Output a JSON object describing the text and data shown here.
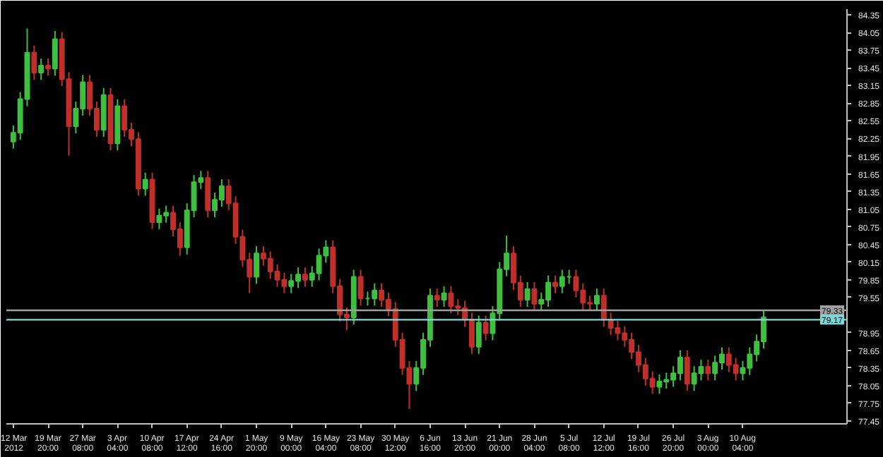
{
  "chart_data": {
    "type": "candlestick",
    "categories": [
      "12 Mar 2012",
      null,
      null,
      null,
      null,
      "19 Mar 20:00",
      null,
      null,
      null,
      null,
      "27 Mar 08:00",
      null,
      null,
      null,
      null,
      "3 Apr 04:00",
      null,
      null,
      null,
      null,
      "10 Apr 08:00",
      null,
      null,
      null,
      null,
      "17 Apr 12:00",
      null,
      null,
      null,
      null,
      "24 Apr 16:00",
      null,
      null,
      null,
      null,
      "1 May 20:00",
      null,
      null,
      null,
      null,
      "9 May 00:00",
      null,
      null,
      null,
      null,
      "16 May 04:00",
      null,
      null,
      null,
      null,
      "23 May 08:00",
      null,
      null,
      null,
      null,
      "30 May 12:00",
      null,
      null,
      null,
      null,
      "6 Jun 16:00",
      null,
      null,
      null,
      null,
      "13 Jun 20:00",
      null,
      null,
      null,
      null,
      "21 Jun 00:00",
      null,
      null,
      null,
      null,
      "28 Jun 04:00",
      null,
      null,
      null,
      null,
      "5 Jul 08:00",
      null,
      null,
      null,
      null,
      "12 Jul 12:00",
      null,
      null,
      null,
      null,
      "19 Jul 16:00",
      null,
      null,
      null,
      null,
      "26 Jul 20:00",
      null,
      null,
      null,
      null,
      "3 Aug 00:00",
      null,
      null,
      null,
      null,
      "10 Aug 04:00",
      null,
      null,
      null,
      null,
      null,
      null,
      null,
      null,
      null,
      null,
      null,
      null,
      null,
      null
    ],
    "ohlc": [
      [
        82.2,
        82.47,
        82.08,
        82.35
      ],
      [
        82.35,
        83.04,
        82.23,
        82.92
      ],
      [
        82.92,
        84.12,
        82.8,
        83.71
      ],
      [
        83.71,
        83.83,
        83.25,
        83.37
      ],
      [
        83.37,
        83.61,
        83.25,
        83.49
      ],
      [
        83.49,
        83.61,
        83.32,
        83.44
      ],
      [
        83.44,
        84.08,
        83.32,
        83.94
      ],
      [
        83.94,
        84.06,
        83.14,
        83.26
      ],
      [
        83.26,
        83.38,
        81.96,
        82.46
      ],
      [
        82.46,
        82.88,
        82.34,
        82.76
      ],
      [
        82.76,
        83.33,
        82.64,
        83.21
      ],
      [
        83.21,
        83.33,
        82.64,
        82.76
      ],
      [
        82.76,
        82.88,
        82.28,
        82.4
      ],
      [
        82.4,
        83.11,
        82.28,
        82.99
      ],
      [
        82.99,
        83.11,
        82.05,
        82.17
      ],
      [
        82.17,
        82.92,
        82.05,
        82.8
      ],
      [
        82.8,
        82.92,
        82.28,
        82.4
      ],
      [
        82.4,
        82.52,
        82.12,
        82.24
      ],
      [
        82.24,
        82.36,
        81.28,
        81.4
      ],
      [
        81.4,
        81.67,
        81.28,
        81.55
      ],
      [
        81.55,
        81.67,
        80.71,
        80.83
      ],
      [
        80.83,
        81.06,
        80.71,
        80.94
      ],
      [
        80.94,
        81.11,
        80.82,
        80.99
      ],
      [
        80.99,
        81.11,
        80.59,
        80.71
      ],
      [
        80.71,
        80.83,
        80.26,
        80.4
      ],
      [
        80.4,
        81.15,
        80.28,
        81.03
      ],
      [
        81.03,
        81.63,
        80.91,
        81.51
      ],
      [
        81.51,
        81.7,
        81.39,
        81.58
      ],
      [
        81.58,
        81.7,
        80.91,
        81.03
      ],
      [
        81.03,
        81.33,
        80.91,
        81.21
      ],
      [
        81.21,
        81.56,
        81.09,
        81.44
      ],
      [
        81.44,
        81.56,
        81.03,
        81.15
      ],
      [
        81.15,
        81.27,
        80.46,
        80.58
      ],
      [
        80.58,
        80.7,
        80.07,
        80.19
      ],
      [
        80.19,
        80.31,
        79.62,
        79.9
      ],
      [
        79.9,
        80.42,
        79.78,
        80.3
      ],
      [
        80.3,
        80.42,
        80.09,
        80.21
      ],
      [
        80.21,
        80.33,
        79.87,
        79.99
      ],
      [
        79.99,
        80.11,
        79.73,
        79.85
      ],
      [
        79.85,
        79.97,
        79.62,
        79.74
      ],
      [
        79.74,
        79.95,
        79.62,
        79.83
      ],
      [
        79.83,
        80.06,
        79.71,
        79.94
      ],
      [
        79.94,
        80.06,
        79.73,
        79.85
      ],
      [
        79.85,
        80.08,
        79.73,
        79.96
      ],
      [
        79.96,
        80.38,
        79.84,
        80.26
      ],
      [
        80.26,
        80.52,
        80.14,
        80.4
      ],
      [
        80.4,
        80.52,
        79.62,
        79.74
      ],
      [
        79.74,
        79.86,
        79.14,
        79.26
      ],
      [
        79.26,
        79.38,
        78.99,
        79.21
      ],
      [
        79.21,
        80.02,
        79.09,
        79.9
      ],
      [
        79.9,
        80.02,
        79.41,
        79.53
      ],
      [
        79.53,
        79.65,
        79.41,
        79.53
      ],
      [
        79.53,
        79.79,
        79.41,
        79.67
      ],
      [
        79.67,
        79.79,
        79.39,
        79.51
      ],
      [
        79.51,
        79.63,
        79.23,
        79.35
      ],
      [
        79.35,
        79.47,
        78.71,
        78.83
      ],
      [
        78.83,
        78.95,
        78.23,
        78.35
      ],
      [
        78.35,
        78.47,
        77.65,
        78.08
      ],
      [
        78.08,
        78.47,
        77.96,
        78.35
      ],
      [
        78.35,
        78.95,
        78.23,
        78.83
      ],
      [
        78.83,
        79.7,
        78.71,
        79.58
      ],
      [
        79.58,
        79.7,
        79.39,
        79.51
      ],
      [
        79.51,
        79.74,
        79.39,
        79.62
      ],
      [
        79.62,
        79.74,
        79.28,
        79.4
      ],
      [
        79.4,
        79.52,
        79.25,
        79.37
      ],
      [
        79.37,
        79.49,
        79.05,
        79.17
      ],
      [
        79.17,
        79.29,
        78.59,
        78.71
      ],
      [
        78.71,
        79.24,
        78.59,
        79.12
      ],
      [
        79.12,
        79.24,
        78.82,
        78.94
      ],
      [
        78.94,
        79.4,
        78.82,
        79.28
      ],
      [
        79.28,
        80.15,
        79.16,
        80.03
      ],
      [
        80.03,
        80.6,
        79.91,
        80.3
      ],
      [
        80.3,
        80.42,
        79.68,
        79.8
      ],
      [
        79.8,
        79.92,
        79.39,
        79.51
      ],
      [
        79.51,
        79.81,
        79.39,
        79.69
      ],
      [
        79.69,
        79.81,
        79.32,
        79.44
      ],
      [
        79.44,
        79.63,
        79.32,
        79.51
      ],
      [
        79.51,
        79.92,
        79.39,
        79.8
      ],
      [
        79.8,
        79.92,
        79.62,
        79.74
      ],
      [
        79.74,
        80.02,
        79.62,
        79.9
      ],
      [
        79.9,
        80.02,
        79.78,
        79.9
      ],
      [
        79.9,
        80.02,
        79.55,
        79.67
      ],
      [
        79.67,
        79.79,
        79.34,
        79.46
      ],
      [
        79.46,
        79.58,
        79.32,
        79.44
      ],
      [
        79.44,
        79.7,
        79.32,
        79.58
      ],
      [
        79.58,
        79.7,
        79.05,
        79.17
      ],
      [
        79.17,
        79.29,
        78.91,
        79.03
      ],
      [
        79.03,
        79.15,
        78.82,
        78.94
      ],
      [
        78.94,
        79.06,
        78.71,
        78.83
      ],
      [
        78.83,
        78.95,
        78.5,
        78.62
      ],
      [
        78.62,
        78.74,
        78.28,
        78.4
      ],
      [
        78.4,
        78.52,
        78.05,
        78.17
      ],
      [
        78.17,
        78.29,
        77.91,
        78.03
      ],
      [
        78.03,
        78.24,
        77.91,
        78.12
      ],
      [
        78.12,
        78.27,
        78.0,
        78.15
      ],
      [
        78.15,
        78.38,
        78.03,
        78.26
      ],
      [
        78.26,
        78.65,
        78.14,
        78.53
      ],
      [
        78.53,
        78.65,
        77.96,
        78.08
      ],
      [
        78.08,
        78.38,
        77.96,
        78.26
      ],
      [
        78.26,
        78.49,
        78.14,
        78.37
      ],
      [
        78.37,
        78.49,
        78.14,
        78.26
      ],
      [
        78.26,
        78.56,
        78.14,
        78.44
      ],
      [
        78.44,
        78.7,
        78.32,
        78.58
      ],
      [
        78.58,
        78.7,
        78.28,
        78.4
      ],
      [
        78.4,
        78.52,
        78.14,
        78.26
      ],
      [
        78.26,
        78.47,
        78.14,
        78.35
      ],
      [
        78.35,
        78.7,
        78.23,
        78.58
      ],
      [
        78.58,
        78.92,
        78.46,
        78.8
      ],
      [
        78.8,
        79.33,
        78.68,
        79.21
      ],
      null,
      null,
      null,
      null,
      null,
      null,
      null,
      null,
      null,
      null,
      null
    ],
    "ylim": [
      77.4,
      84.45
    ],
    "yticks": [
      84.35,
      84.05,
      83.75,
      83.45,
      83.15,
      82.85,
      82.55,
      82.25,
      81.95,
      81.65,
      81.35,
      81.05,
      80.75,
      80.45,
      80.15,
      79.85,
      79.55,
      78.95,
      78.65,
      78.35,
      78.05,
      77.75,
      77.45
    ],
    "ref_lines": [
      {
        "axis": "y",
        "value": 79.33,
        "label": "79.33",
        "color": "#a0a0a0"
      },
      {
        "axis": "y",
        "value": 79.17,
        "label": "79.17",
        "color": "#7fd8d8"
      }
    ],
    "grid": false
  }
}
